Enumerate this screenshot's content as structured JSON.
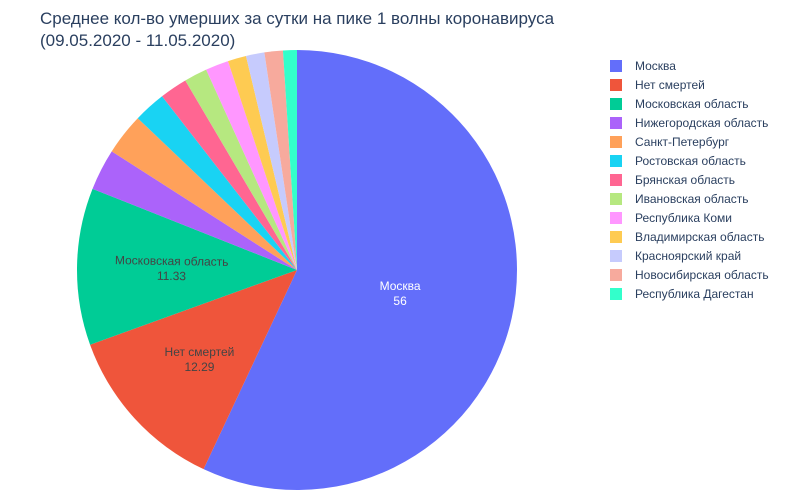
{
  "chart_data": {
    "type": "pie",
    "title_line1": "Среднее кол-во умерших за сутки на пике 1 волны коронавируса",
    "title_line2": "(09.05.2020 - 11.05.2020)",
    "sort": "descending",
    "direction": "clockwise",
    "start": "top",
    "legend_position": "right",
    "slices": [
      {
        "label": "Москва",
        "value": 56,
        "color": "#636efa",
        "text_label": "Москва",
        "text_value": "56",
        "text_color": "#ffffff"
      },
      {
        "label": "Нет смертей",
        "value": 12.29,
        "color": "#EF553B",
        "text_label": "Нет смертей",
        "text_value": "12.29",
        "text_color": "#444444"
      },
      {
        "label": "Московская область",
        "value": 11.33,
        "color": "#00cc96",
        "text_label": "Московская область",
        "text_value": "11.33",
        "text_color": "#444444"
      },
      {
        "label": "Нижегородская область",
        "value": 3,
        "color": "#ab63fa"
      },
      {
        "label": "Санкт-Петербург",
        "value": 3,
        "color": "#FFA15A"
      },
      {
        "label": "Ростовская область",
        "value": 2.33,
        "color": "#19d3f3"
      },
      {
        "label": "Брянская область",
        "value": 2,
        "color": "#FF6692"
      },
      {
        "label": "Ивановская область",
        "value": 1.67,
        "color": "#B6E880"
      },
      {
        "label": "Республика Коми",
        "value": 1.67,
        "color": "#FF97FF"
      },
      {
        "label": "Владимирская область",
        "value": 1.33,
        "color": "#FECB52"
      },
      {
        "label": "Красноярский край",
        "value": 1.33,
        "color": "#c6cbfd"
      },
      {
        "label": "Новосибирская область",
        "value": 1.33,
        "color": "#f7aa9d"
      },
      {
        "label": "Республика Дагестан",
        "value": 1,
        "color": "#33ffcb"
      }
    ]
  }
}
